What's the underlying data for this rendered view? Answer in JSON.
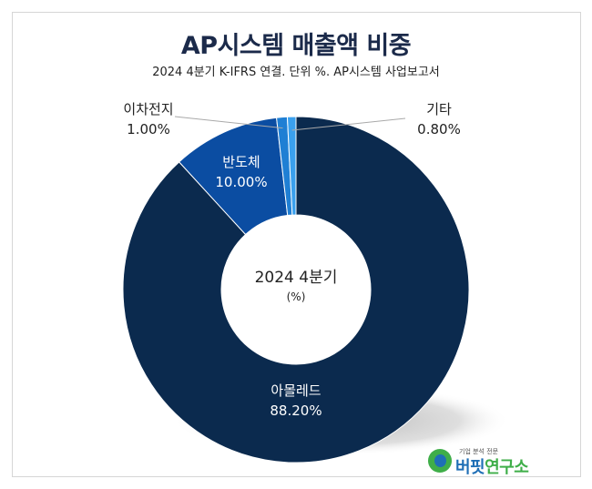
{
  "title": "AP시스템 매출액 비중",
  "subtitle": "2024 4분기 K-IFRS 연결. 단위 %. AP시스템 사업보고서",
  "center": {
    "label": "2024 4분기",
    "unit": "(%)"
  },
  "chart_data": {
    "type": "pie",
    "variant": "donut",
    "slices": [
      {
        "label": "아몰레드",
        "value": 88.2,
        "display": "88.20%",
        "color": "#0b2a4e"
      },
      {
        "label": "반도체",
        "value": 10.0,
        "display": "10.00%",
        "color": "#0b4da2"
      },
      {
        "label": "이차전지",
        "value": 1.0,
        "display": "1.00%",
        "color": "#1f7fd4"
      },
      {
        "label": "기타",
        "value": 0.8,
        "display": "0.80%",
        "color": "#3aa0ee"
      }
    ]
  },
  "logo": {
    "tagline": "기업 분석 전문",
    "name_part1": "버핏",
    "name_part2": "연구소"
  }
}
